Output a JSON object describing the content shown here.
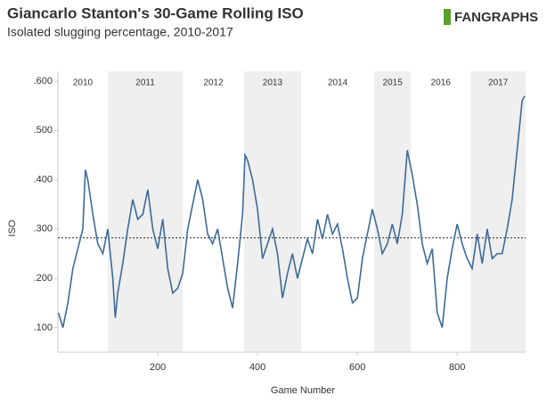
{
  "chart_data": {
    "type": "line",
    "title": "Giancarlo Stanton's 30-Game Rolling ISO",
    "subtitle": "Isolated slugging percentage, 2010-2017",
    "brand": "FANGRAPHS",
    "xlabel": "Game Number",
    "ylabel": "ISO",
    "color": "#3d6a98",
    "x": [
      1,
      10,
      20,
      30,
      40,
      50,
      55,
      60,
      70,
      80,
      90,
      100,
      110,
      115,
      120,
      130,
      140,
      150,
      160,
      170,
      180,
      190,
      200,
      210,
      220,
      230,
      240,
      250,
      260,
      270,
      280,
      290,
      300,
      310,
      320,
      330,
      340,
      350,
      360,
      370,
      375,
      380,
      390,
      400,
      410,
      420,
      430,
      440,
      450,
      460,
      470,
      480,
      490,
      500,
      510,
      520,
      530,
      540,
      550,
      560,
      570,
      580,
      590,
      600,
      610,
      620,
      630,
      640,
      650,
      660,
      670,
      680,
      690,
      700,
      710,
      720,
      730,
      740,
      750,
      760,
      770,
      780,
      790,
      800,
      810,
      820,
      830,
      840,
      850,
      860,
      870,
      880,
      890,
      900,
      910,
      920,
      930,
      935
    ],
    "values": [
      0.13,
      0.1,
      0.15,
      0.22,
      0.26,
      0.3,
      0.42,
      0.4,
      0.33,
      0.27,
      0.25,
      0.3,
      0.2,
      0.12,
      0.17,
      0.23,
      0.3,
      0.36,
      0.32,
      0.33,
      0.38,
      0.3,
      0.26,
      0.32,
      0.22,
      0.17,
      0.18,
      0.21,
      0.3,
      0.35,
      0.4,
      0.36,
      0.29,
      0.27,
      0.3,
      0.24,
      0.18,
      0.14,
      0.23,
      0.33,
      0.45,
      0.44,
      0.4,
      0.34,
      0.24,
      0.27,
      0.3,
      0.25,
      0.16,
      0.21,
      0.25,
      0.2,
      0.24,
      0.28,
      0.25,
      0.32,
      0.28,
      0.33,
      0.29,
      0.31,
      0.26,
      0.2,
      0.15,
      0.16,
      0.24,
      0.29,
      0.34,
      0.3,
      0.25,
      0.27,
      0.31,
      0.27,
      0.33,
      0.46,
      0.41,
      0.35,
      0.27,
      0.23,
      0.26,
      0.13,
      0.1,
      0.2,
      0.26,
      0.31,
      0.27,
      0.24,
      0.22,
      0.29,
      0.23,
      0.3,
      0.24,
      0.25,
      0.25,
      0.3,
      0.36,
      0.46,
      0.56,
      0.57
    ],
    "mean_line": 0.282,
    "seasons": [
      {
        "label": "2010",
        "start": 0,
        "end": 100,
        "shade": false
      },
      {
        "label": "2011",
        "start": 100,
        "end": 250,
        "shade": true
      },
      {
        "label": "2012",
        "start": 250,
        "end": 373,
        "shade": false
      },
      {
        "label": "2013",
        "start": 373,
        "end": 487,
        "shade": true
      },
      {
        "label": "2014",
        "start": 487,
        "end": 634,
        "shade": false
      },
      {
        "label": "2015",
        "start": 634,
        "end": 707,
        "shade": true
      },
      {
        "label": "2016",
        "start": 707,
        "end": 827,
        "shade": false
      },
      {
        "label": "2017",
        "start": 827,
        "end": 937,
        "shade": true
      }
    ],
    "xlim": [
      0,
      937
    ],
    "xticks": [
      200,
      400,
      600,
      800
    ],
    "ylim": [
      0.05,
      0.62
    ],
    "yticks": [
      {
        "value": 0.1,
        "label": ".100"
      },
      {
        "value": 0.2,
        "label": ".200"
      },
      {
        "value": 0.3,
        "label": ".300"
      },
      {
        "value": 0.4,
        "label": ".400"
      },
      {
        "value": 0.5,
        "label": ".500"
      },
      {
        "value": 0.6,
        "label": ".600"
      }
    ]
  }
}
